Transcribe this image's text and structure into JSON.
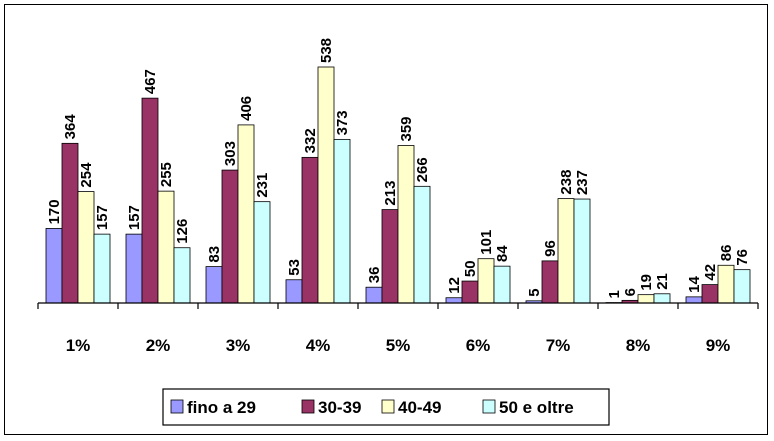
{
  "chart_data": {
    "type": "bar",
    "title": "",
    "xlabel": "",
    "ylabel": "",
    "ylim": [
      0,
      538
    ],
    "grid": false,
    "legend_position": "bottom",
    "categories": [
      "1%",
      "2%",
      "3%",
      "4%",
      "5%",
      "6%",
      "7%",
      "8%",
      "9%"
    ],
    "series": [
      {
        "name": "fino a 29",
        "color": "#9999ff",
        "values": [
          170,
          157,
          83,
          53,
          36,
          12,
          5,
          1,
          14
        ]
      },
      {
        "name": "30-39",
        "color": "#993366",
        "values": [
          364,
          467,
          303,
          332,
          213,
          50,
          96,
          6,
          42
        ]
      },
      {
        "name": "40-49",
        "color": "#ffffcc",
        "values": [
          254,
          255,
          406,
          538,
          359,
          101,
          238,
          19,
          86
        ]
      },
      {
        "name": "50 e oltre",
        "color": "#ccffff",
        "values": [
          157,
          126,
          231,
          373,
          266,
          84,
          237,
          21,
          76
        ]
      }
    ]
  }
}
